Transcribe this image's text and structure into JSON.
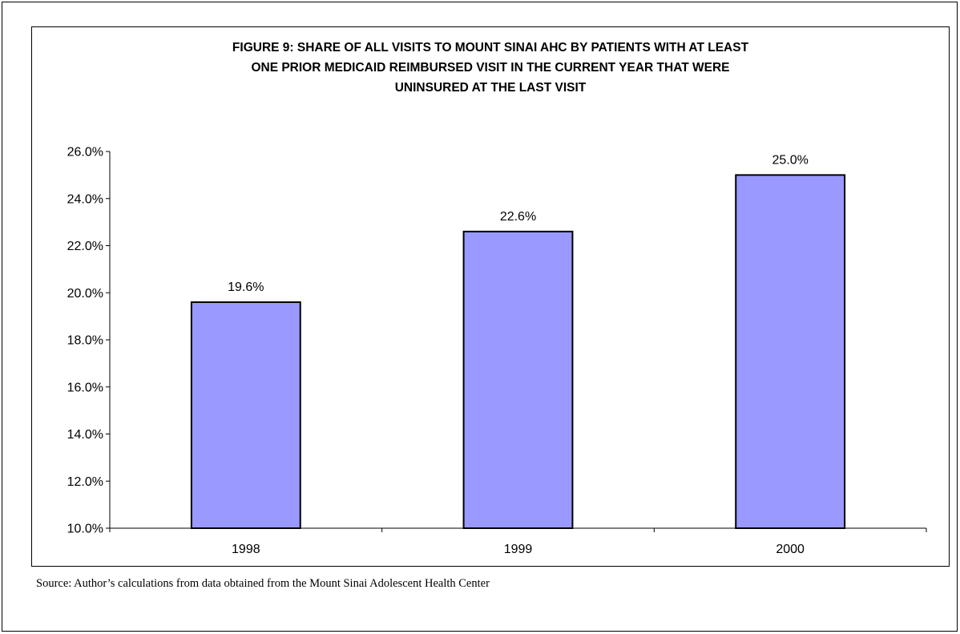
{
  "chart_data": {
    "type": "bar",
    "title_lines": [
      "FIGURE 9:  SHARE OF ALL VISITS TO MOUNT SINAI AHC BY PATIENTS WITH AT LEAST",
      "ONE PRIOR MEDICAID REIMBURSED VISIT IN THE CURRENT YEAR THAT WERE",
      "UNINSURED AT THE LAST VISIT"
    ],
    "categories": [
      "1998",
      "1999",
      "2000"
    ],
    "values": [
      19.6,
      22.6,
      25.0
    ],
    "data_labels": [
      "19.6%",
      "22.6%",
      "25.0%"
    ],
    "xlabel": "",
    "ylabel": "",
    "ylim": [
      10.0,
      26.0
    ],
    "y_ticks": [
      10.0,
      12.0,
      14.0,
      16.0,
      18.0,
      20.0,
      22.0,
      24.0,
      26.0
    ],
    "y_tick_labels": [
      "10.0%",
      "12.0%",
      "14.0%",
      "16.0%",
      "18.0%",
      "20.0%",
      "22.0%",
      "24.0%",
      "26.0%"
    ],
    "grid": false,
    "legend": "none",
    "bar_color": "#9999FF",
    "bar_edge_color": "#000000"
  },
  "source_note": "Source:  Author’s calculations from data obtained from the Mount Sinai Adolescent Health Center"
}
